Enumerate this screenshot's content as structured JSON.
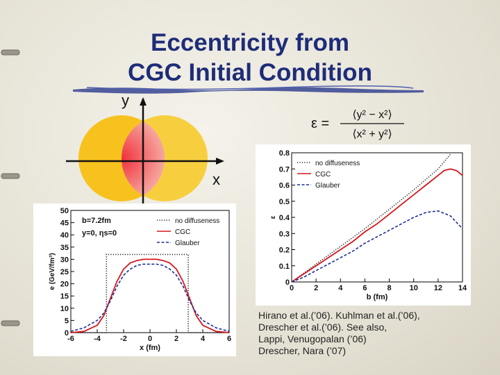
{
  "title": {
    "line1": "Eccentricity from",
    "line2": "CGC Initial Condition"
  },
  "diagram": {
    "y_label": "y",
    "x_label": "x"
  },
  "formula": {
    "lhs": "ε =",
    "numerator": "⟨y² − x²⟩",
    "denominator": "⟨x² + y²⟩"
  },
  "references": [
    "Hirano et al.(’06). Kuhlman et al.(’06),",
    "Drescher et al.(’06). See also,",
    "Lappi, Venugopalan (’06)",
    "Drescher, Nara (’07)"
  ],
  "colors": {
    "title": "#1e2d78",
    "cgc": "#d4161c",
    "glauber": "#1a2a9a",
    "nucleus": "#f7c21e"
  },
  "chart_data": [
    {
      "type": "line",
      "xlabel": "x (fm)",
      "ylabel": "e (GeV/fm³)",
      "xlim": [
        -6,
        6
      ],
      "ylim": [
        0,
        50
      ],
      "xticks": [
        "-6",
        "-4",
        "-2",
        "0",
        "2",
        "4",
        "6"
      ],
      "yticks": [
        "0",
        "5",
        "10",
        "15",
        "20",
        "25",
        "30",
        "35",
        "40",
        "45",
        "50"
      ],
      "annotations": [
        "b=7.2fm",
        "y=0, ηs=0"
      ],
      "legend_position": "top-right",
      "series": [
        {
          "name": "no diffuseness",
          "style": "dotted",
          "x": [
            -6,
            -3.3,
            -3.3,
            2.9,
            2.9,
            6
          ],
          "y": [
            0,
            0,
            32,
            32,
            0,
            0
          ]
        },
        {
          "name": "CGC",
          "style": "solid",
          "x": [
            -6,
            -5,
            -4,
            -3.5,
            -3,
            -2.5,
            -2,
            -1.5,
            -1,
            -0.5,
            0,
            0.5,
            1,
            1.5,
            2,
            2.5,
            3,
            3.5,
            4,
            5,
            6
          ],
          "y": [
            0,
            0.5,
            3,
            7,
            14,
            21,
            26,
            28.5,
            29.5,
            30,
            30,
            30,
            29.5,
            28.5,
            26,
            21,
            14,
            7,
            3,
            0.5,
            0
          ]
        },
        {
          "name": "Glauber",
          "style": "dashed",
          "x": [
            -6,
            -5,
            -4,
            -3.5,
            -3,
            -2.5,
            -2,
            -1.5,
            -1,
            -0.5,
            0,
            0.5,
            1,
            1.5,
            2,
            2.5,
            3,
            3.5,
            4,
            5,
            6
          ],
          "y": [
            0.5,
            2,
            5,
            8,
            13,
            19,
            23.5,
            26,
            27.5,
            28,
            28,
            28,
            27.5,
            26,
            23.5,
            19,
            13,
            8,
            5,
            2,
            0.5
          ]
        }
      ]
    },
    {
      "type": "line",
      "xlabel": "b (fm)",
      "ylabel": "ε",
      "xlim": [
        0,
        14
      ],
      "ylim": [
        0,
        0.8
      ],
      "xticks": [
        "0",
        "2",
        "4",
        "6",
        "8",
        "10",
        "12",
        "14"
      ],
      "yticks": [
        "0",
        "0.1",
        "0.2",
        "0.3",
        "0.4",
        "0.5",
        "0.6",
        "0.7",
        "0.8"
      ],
      "legend_position": "top-left",
      "series": [
        {
          "name": "no diffuseness",
          "style": "dotted",
          "x": [
            0,
            2,
            4,
            6,
            8,
            10,
            12,
            13
          ],
          "y": [
            0,
            0.11,
            0.22,
            0.33,
            0.45,
            0.57,
            0.7,
            0.79
          ]
        },
        {
          "name": "CGC",
          "style": "solid",
          "x": [
            0,
            1,
            2,
            3,
            4,
            5,
            6,
            7,
            8,
            9,
            10,
            11,
            12,
            12.5,
            13,
            13.5,
            14
          ],
          "y": [
            0,
            0.05,
            0.1,
            0.15,
            0.2,
            0.25,
            0.31,
            0.36,
            0.42,
            0.48,
            0.54,
            0.6,
            0.66,
            0.69,
            0.7,
            0.69,
            0.66
          ]
        },
        {
          "name": "Glauber",
          "style": "dashed",
          "x": [
            0,
            1,
            2,
            3,
            4,
            5,
            6,
            7,
            8,
            9,
            10,
            11,
            12,
            13,
            14
          ],
          "y": [
            0,
            0.03,
            0.07,
            0.11,
            0.15,
            0.19,
            0.24,
            0.28,
            0.32,
            0.36,
            0.4,
            0.43,
            0.44,
            0.41,
            0.33
          ]
        }
      ]
    }
  ]
}
